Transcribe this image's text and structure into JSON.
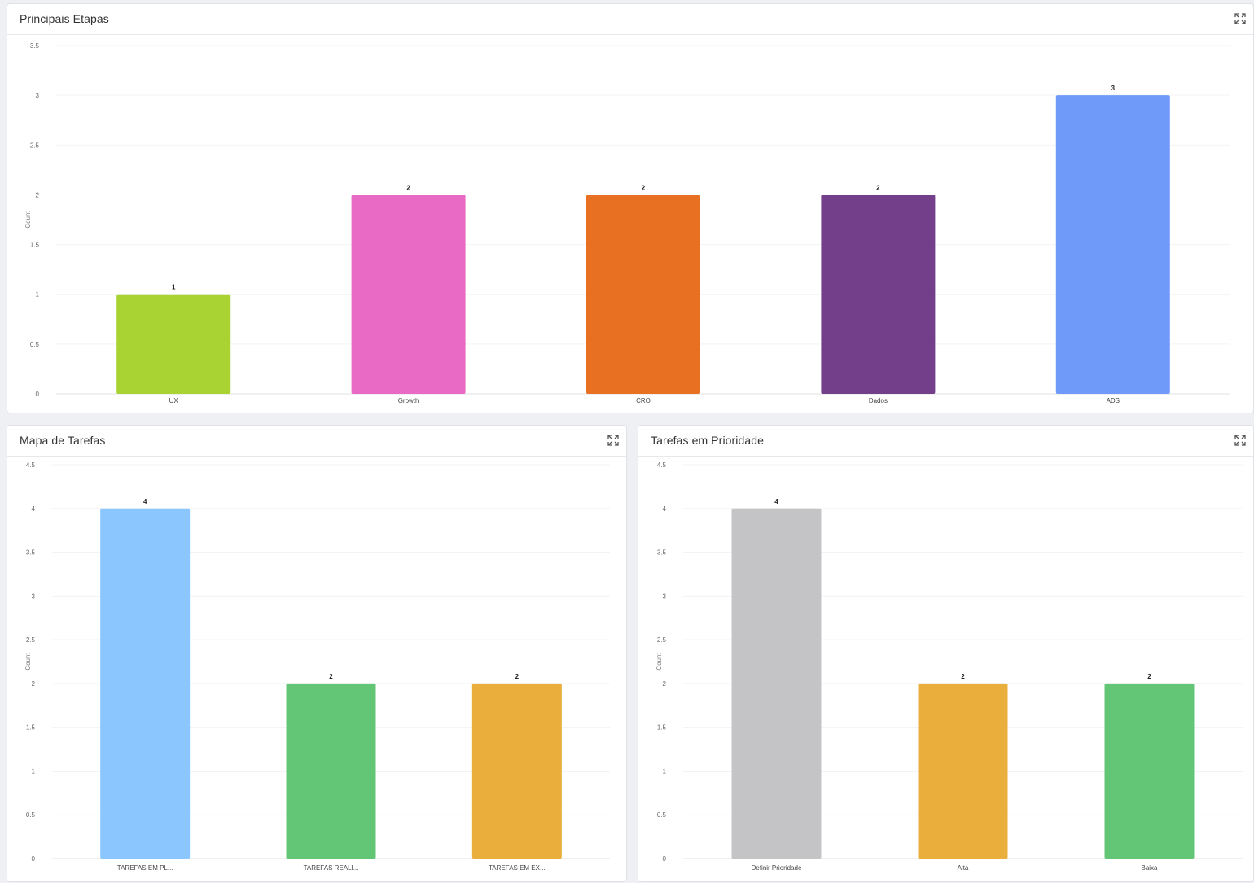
{
  "chart_data": [
    {
      "id": "top",
      "type": "bar",
      "title": "Principais Etapas",
      "xlabel": "",
      "ylabel": "Count",
      "ylim": [
        0,
        3.5
      ],
      "yticks": [
        "0",
        "0.5",
        "1",
        "1.5",
        "2",
        "2.5",
        "3",
        "3.5"
      ],
      "categories": [
        "UX",
        "Growth",
        "CRO",
        "Dados",
        "ADS"
      ],
      "values": [
        1,
        2,
        2,
        2,
        3
      ],
      "colors": [
        "#a8d332",
        "#e86ac4",
        "#e87022",
        "#733f8a",
        "#6f9afa"
      ],
      "grid": true,
      "legend": "none"
    },
    {
      "id": "left",
      "type": "bar",
      "title": "Mapa de Tarefas",
      "xlabel": "",
      "ylabel": "Count",
      "ylim": [
        0,
        4.5
      ],
      "yticks": [
        "0",
        "0.5",
        "1",
        "1.5",
        "2",
        "2.5",
        "3",
        "3.5",
        "4",
        "4.5"
      ],
      "categories": [
        "TAREFAS EM PL...",
        "TAREFAS REALI...",
        "TAREFAS EM EX..."
      ],
      "values": [
        4,
        2,
        2
      ],
      "colors": [
        "#8bc6ff",
        "#63c677",
        "#e9ae3c"
      ],
      "grid": true,
      "legend": "none"
    },
    {
      "id": "right",
      "type": "bar",
      "title": "Tarefas em Prioridade",
      "xlabel": "",
      "ylabel": "Count",
      "ylim": [
        0,
        4.5
      ],
      "yticks": [
        "0",
        "0.5",
        "1",
        "1.5",
        "2",
        "2.5",
        "3",
        "3.5",
        "4",
        "4.5"
      ],
      "categories": [
        "Definir Prioridade",
        "Alta",
        "Baixa"
      ],
      "values": [
        4,
        2,
        2
      ],
      "colors": [
        "#c4c4c6",
        "#e9ae3c",
        "#63c677"
      ],
      "grid": true,
      "legend": "none"
    }
  ],
  "icons": {
    "expand": "expand-icon"
  }
}
